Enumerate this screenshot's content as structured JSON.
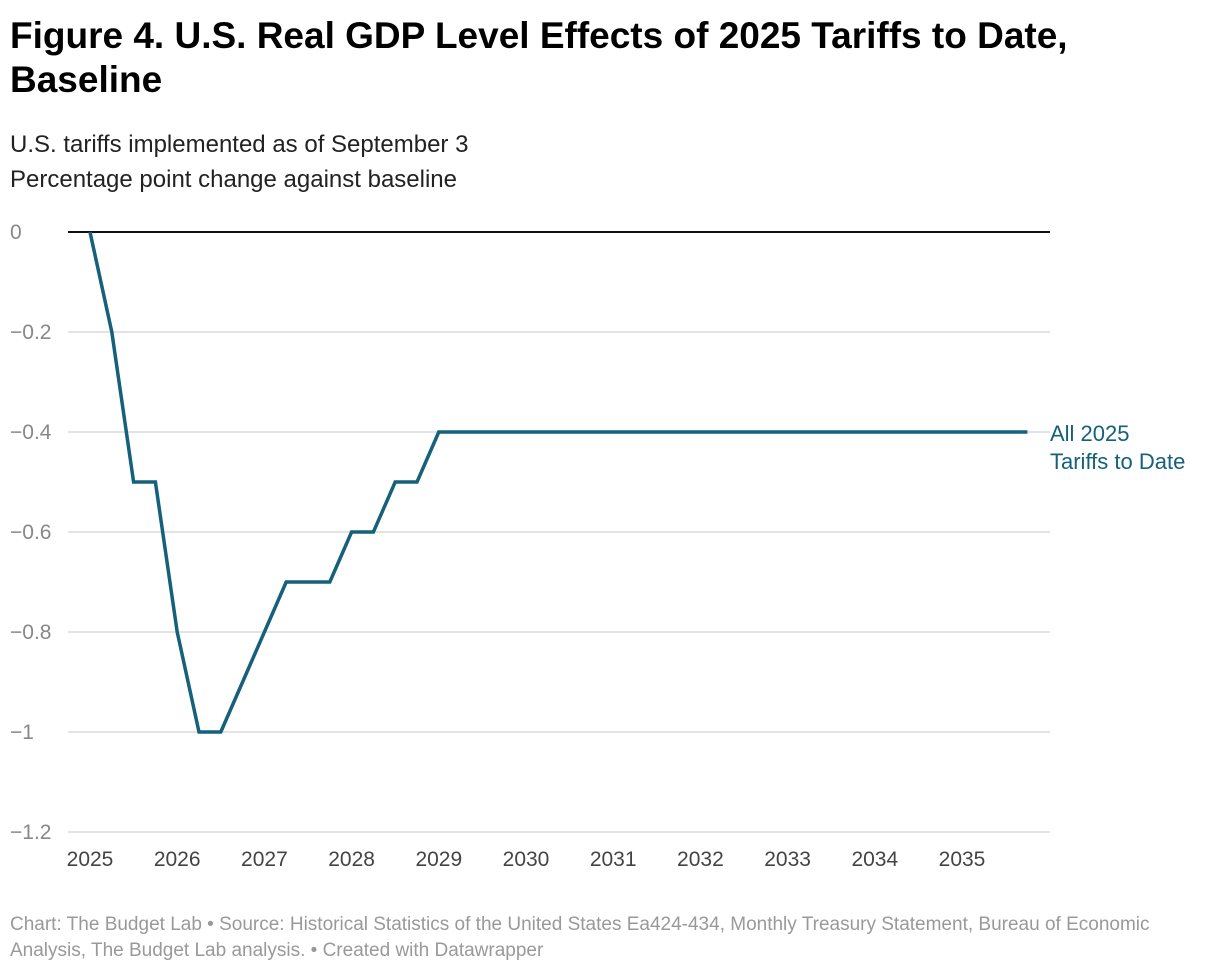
{
  "title": "Figure 4. U.S. Real GDP Level Effects of 2025 Tariffs to Date, Baseline",
  "subtitle1": "U.S. tariffs implemented as of September 3",
  "subtitle2": "Percentage point change against baseline",
  "footer": "Chart: The Budget Lab • Source: Historical Statistics of the United States Ea424-434, Monthly Treasury Statement, Bureau of Economic Analysis, The Budget Lab analysis.  • Created with Datawrapper",
  "chart_data": {
    "type": "line",
    "title": "Figure 4. U.S. Real GDP Level Effects of 2025 Tariffs to Date, Baseline",
    "ylabel": "Percentage point change against baseline",
    "ylim": [
      -1.2,
      0
    ],
    "xlim": [
      2025,
      2035.75
    ],
    "grid": true,
    "y_ticks": [
      "0",
      "-0.2",
      "-0.4",
      "-0.6",
      "-0.8",
      "-1",
      "-1.2"
    ],
    "x_ticks": [
      "2025",
      "2026",
      "2027",
      "2028",
      "2029",
      "2030",
      "2031",
      "2032",
      "2033",
      "2034",
      "2035"
    ],
    "series": [
      {
        "name": "All 2025 Tariffs to Date",
        "color": "#15607a",
        "x": [
          2025,
          2025.25,
          2025.5,
          2025.75,
          2026,
          2026.25,
          2026.5,
          2026.75,
          2027,
          2027.25,
          2027.5,
          2027.75,
          2028,
          2028.25,
          2028.5,
          2028.75,
          2029,
          2029.25,
          2029.5,
          2029.75,
          2030,
          2030.25,
          2030.5,
          2030.75,
          2031,
          2031.25,
          2031.5,
          2031.75,
          2032,
          2032.25,
          2032.5,
          2032.75,
          2033,
          2033.25,
          2033.5,
          2033.75,
          2034,
          2034.25,
          2034.5,
          2034.75,
          2035,
          2035.25,
          2035.5,
          2035.75
        ],
        "values": [
          0,
          -0.2,
          -0.5,
          -0.5,
          -0.8,
          -1,
          -1,
          -0.9,
          -0.8,
          -0.7,
          -0.7,
          -0.7,
          -0.6,
          -0.6,
          -0.5,
          -0.5,
          -0.4,
          -0.4,
          -0.4,
          -0.4,
          -0.4,
          -0.4,
          -0.4,
          -0.4,
          -0.4,
          -0.4,
          -0.4,
          -0.4,
          -0.4,
          -0.4,
          -0.4,
          -0.4,
          -0.4,
          -0.4,
          -0.4,
          -0.4,
          -0.4,
          -0.4,
          -0.4,
          -0.4,
          -0.4,
          -0.4,
          -0.4,
          -0.4
        ]
      }
    ],
    "series_label_lines": [
      "All 2025",
      "Tariffs to Date"
    ]
  }
}
